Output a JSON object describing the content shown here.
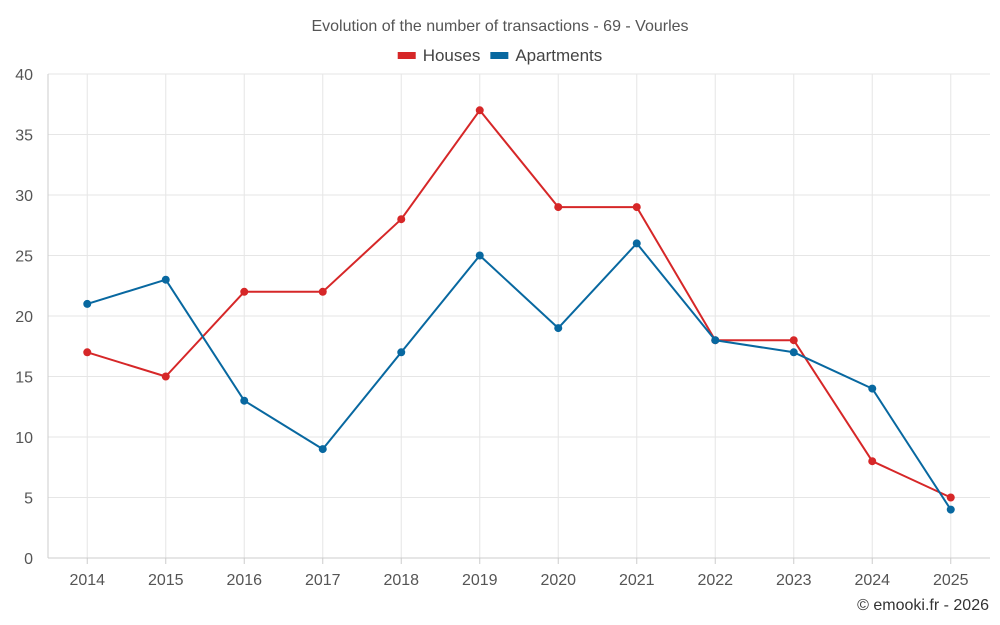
{
  "chart_data": {
    "type": "line",
    "title": "Evolution of the number of transactions - 69 - Vourles",
    "categories": [
      "2014",
      "2015",
      "2016",
      "2017",
      "2018",
      "2019",
      "2020",
      "2021",
      "2022",
      "2023",
      "2024",
      "2025"
    ],
    "ylim": [
      0,
      40
    ],
    "yticks": [
      0,
      5,
      10,
      15,
      20,
      25,
      30,
      35,
      40
    ],
    "grid": true,
    "legend_position": "top-center",
    "series": [
      {
        "name": "Houses",
        "color": "#d62728",
        "values": [
          17,
          15,
          22,
          22,
          28,
          37,
          29,
          29,
          18,
          18,
          8,
          5
        ]
      },
      {
        "name": "Apartments",
        "color": "#0868a0",
        "values": [
          21,
          23,
          13,
          9,
          17,
          25,
          19,
          26,
          18,
          17,
          14,
          4
        ]
      }
    ],
    "credit": "© emooki.fr - 2026"
  }
}
